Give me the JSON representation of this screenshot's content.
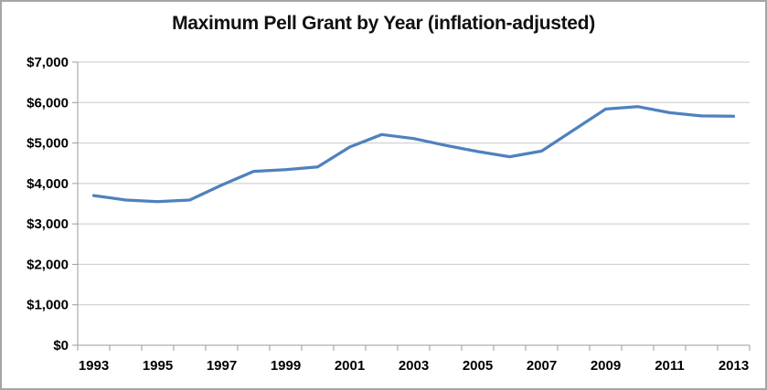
{
  "frame": {
    "background": "#ffffff",
    "border_color": "#a6a6a6"
  },
  "chart_data": {
    "type": "line",
    "title": "Maximum Pell Grant by Year (inflation-adjusted)",
    "categories": [
      1993,
      1994,
      1995,
      1996,
      1997,
      1998,
      1999,
      2000,
      2001,
      2002,
      2003,
      2004,
      2005,
      2006,
      2007,
      2008,
      2009,
      2010,
      2011,
      2012,
      2013
    ],
    "values": [
      3700,
      3590,
      3550,
      3590,
      3960,
      4300,
      4340,
      4410,
      4900,
      5210,
      5110,
      4940,
      4790,
      4660,
      4800,
      5320,
      5840,
      5900,
      5750,
      5670,
      5660
    ],
    "xlabel": "",
    "ylabel": "",
    "ylim": [
      0,
      7000
    ],
    "y_tick_step": 1000,
    "y_tick_labels": [
      "$0",
      "$1,000",
      "$2,000",
      "$3,000",
      "$4,000",
      "$5,000",
      "$6,000",
      "$7,000"
    ],
    "x_tick_labels": [
      "1993",
      "1995",
      "1997",
      "1999",
      "2001",
      "2003",
      "2005",
      "2007",
      "2009",
      "2011",
      "2013"
    ],
    "x_label_every": 2,
    "grid": true,
    "legend_position": "none",
    "line_color": "#4F81BD",
    "line_width": 3.25,
    "gridline_color": "#c9c9c9",
    "axis_color": "#9b9b9b",
    "tick_label_font_size": 15
  }
}
